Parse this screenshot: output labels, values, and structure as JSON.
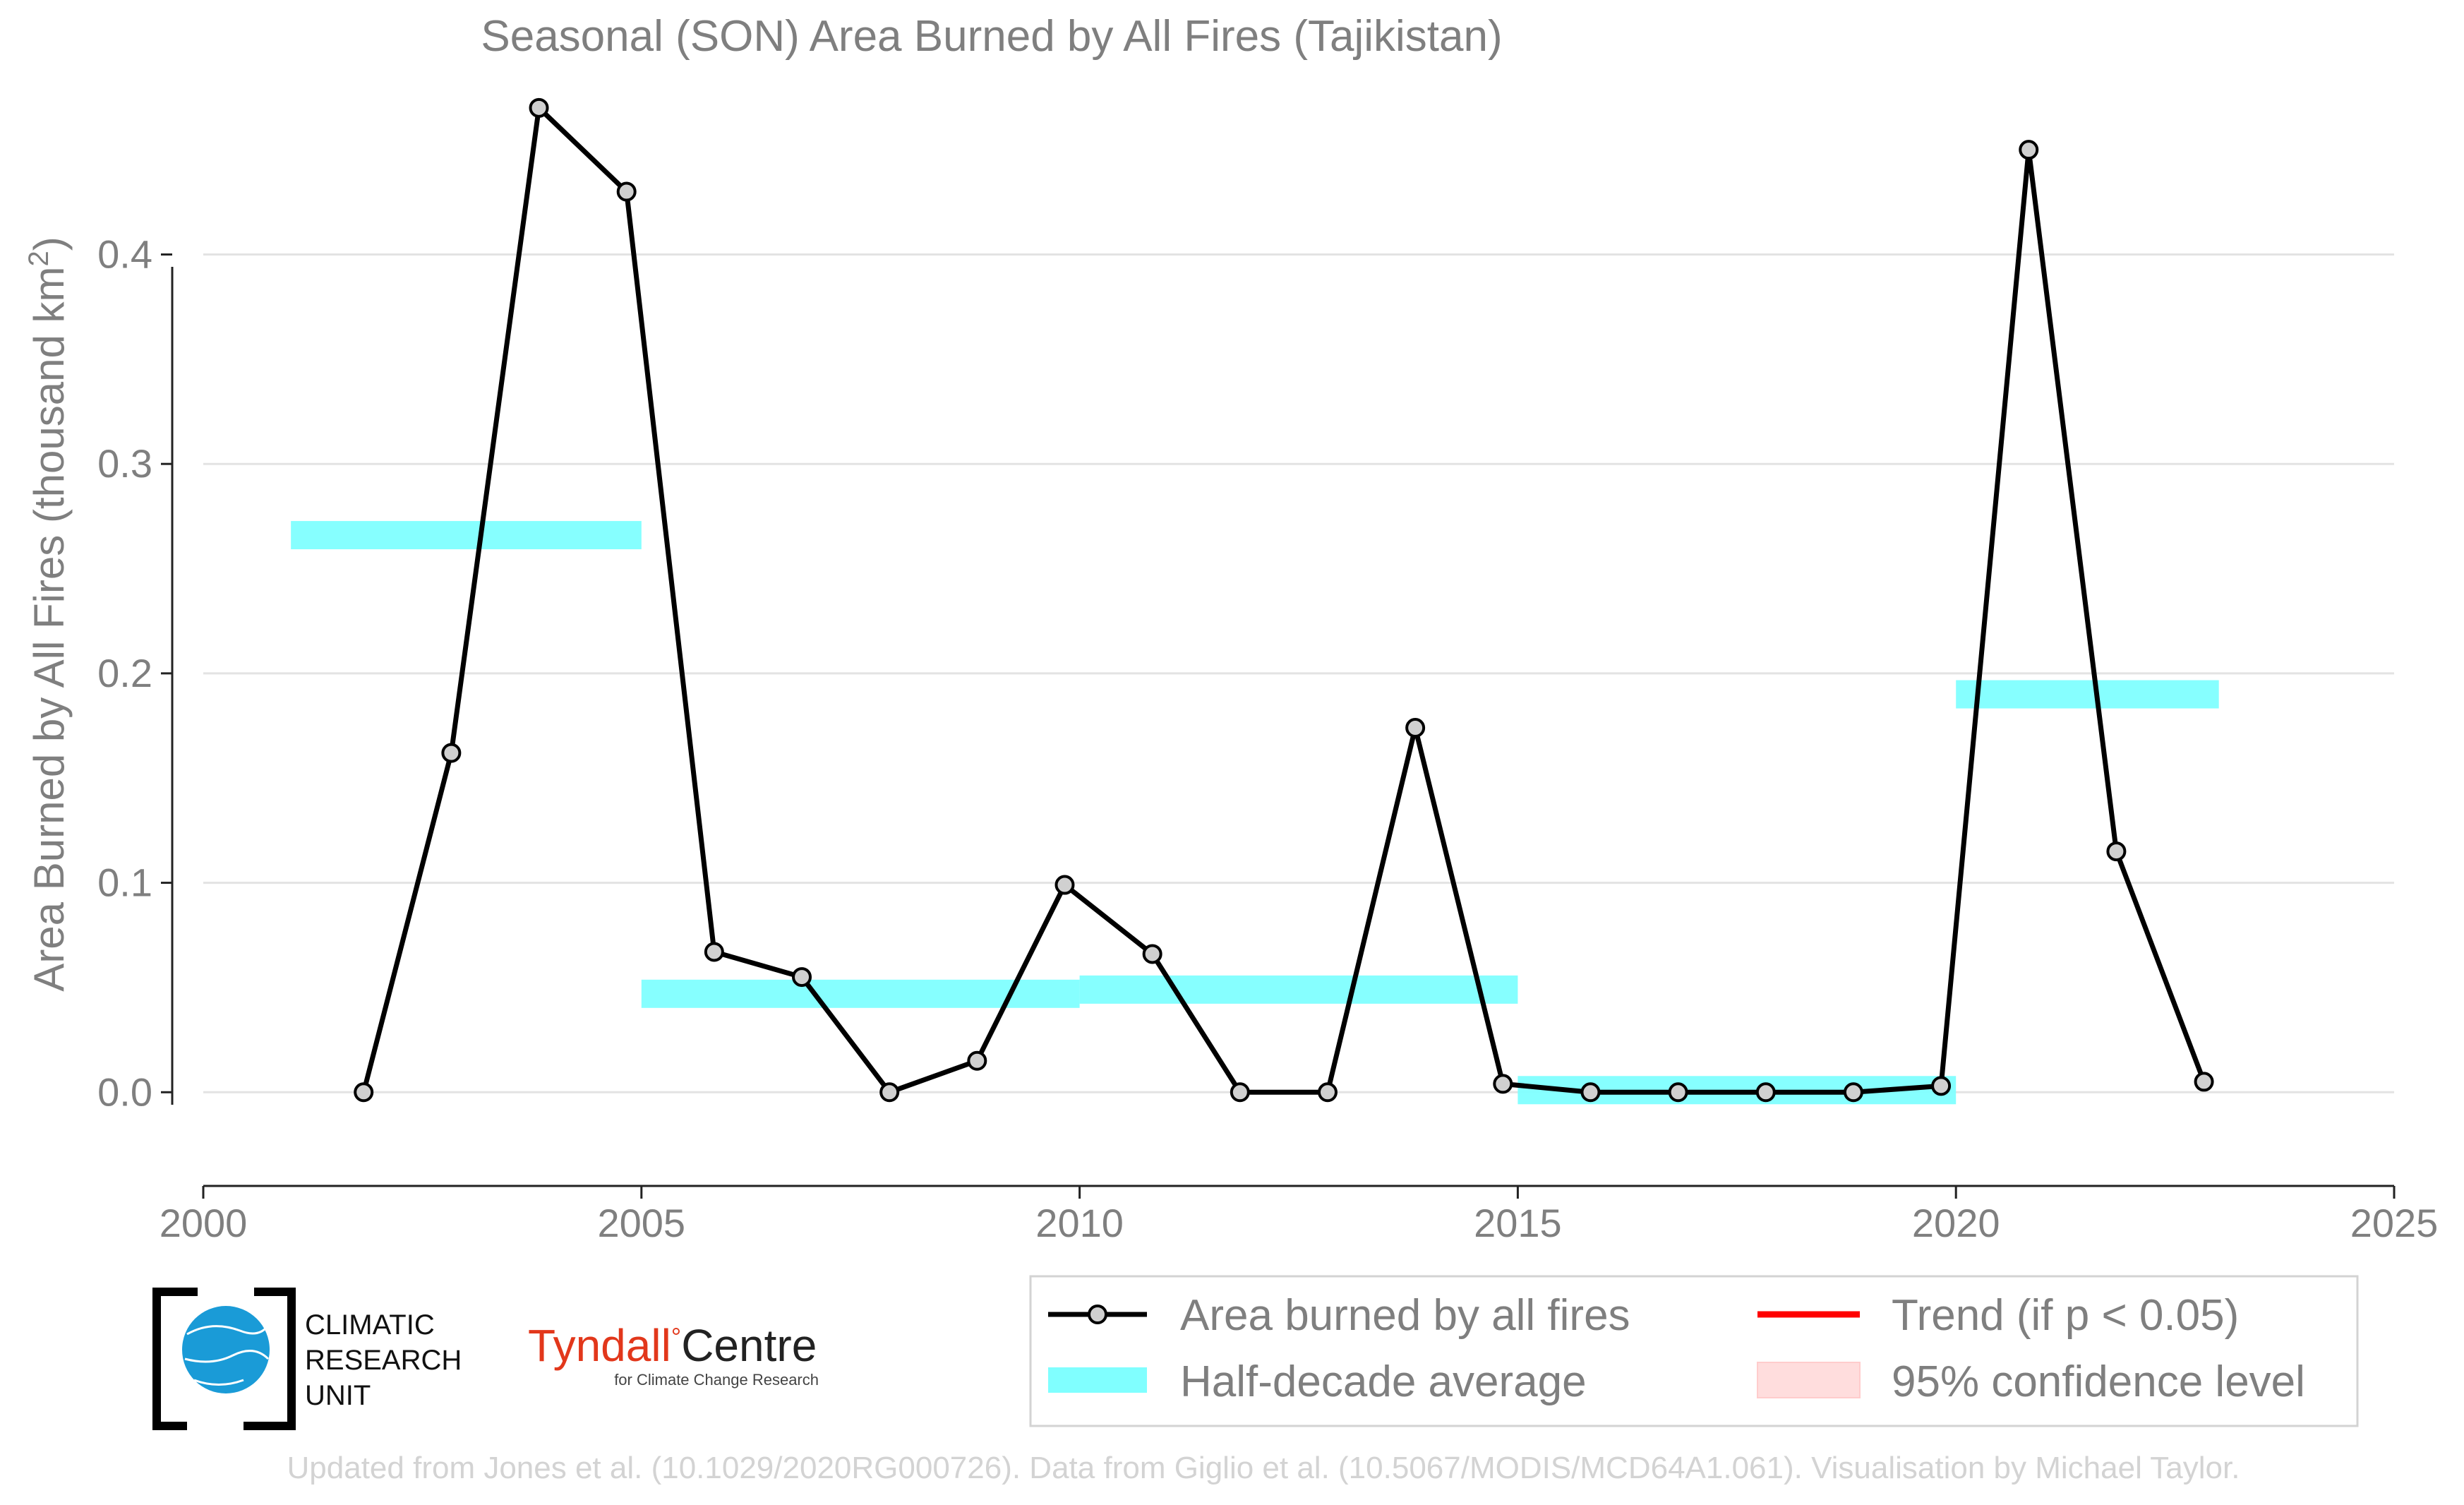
{
  "chart_data": {
    "type": "line",
    "title": "Seasonal (SON) Area Burned by All Fires (Tajikistan)",
    "ylabel": "Area Burned by All Fires (thousand km",
    "ylabel_sup": "2",
    "ylabel_close": ")",
    "xlim": [
      2000,
      2025
    ],
    "ylim": [
      -0.038,
      0.475
    ],
    "x_ticks": [
      2000,
      2005,
      2010,
      2015,
      2020,
      2025
    ],
    "x_tick_labels": [
      "2000",
      "2005",
      "2010",
      "2015",
      "2020",
      "2025"
    ],
    "y_ticks": [
      0.0,
      0.1,
      0.2,
      0.3,
      0.4
    ],
    "y_tick_labels": [
      "0.0",
      "0.1",
      "0.2",
      "0.3",
      "0.4"
    ],
    "grid": "horizontal",
    "series": [
      {
        "name": "Area burned by all fires",
        "color": "#000000",
        "marker_fill": "#d0d0d0",
        "x": [
          2001.83,
          2002.83,
          2003.83,
          2004.83,
          2005.83,
          2006.83,
          2007.83,
          2008.83,
          2009.83,
          2010.83,
          2011.83,
          2012.83,
          2013.83,
          2014.83,
          2015.83,
          2016.83,
          2017.83,
          2018.83,
          2019.83,
          2020.83,
          2021.83,
          2022.83
        ],
        "values": [
          0.0,
          0.162,
          0.47,
          0.43,
          0.067,
          0.055,
          0.0,
          0.015,
          0.099,
          0.066,
          0.0,
          0.0,
          0.174,
          0.004,
          0.0,
          0.0,
          0.0,
          0.0,
          0.003,
          0.45,
          0.115,
          0.005
        ]
      }
    ],
    "half_decade_average": {
      "name": "Half-decade average",
      "color": "#80ffff",
      "segments": [
        {
          "x_start": 2001,
          "x_end": 2005,
          "value": 0.266
        },
        {
          "x_start": 2005,
          "x_end": 2010,
          "value": 0.047
        },
        {
          "x_start": 2010,
          "x_end": 2015,
          "value": 0.049
        },
        {
          "x_start": 2015,
          "x_end": 2020,
          "value": 0.001
        },
        {
          "x_start": 2020,
          "x_end": 2023,
          "value": 0.19
        }
      ]
    },
    "legend": {
      "position": "bottom-right",
      "items": [
        {
          "label": "Area burned by all fires",
          "color": "#000000"
        },
        {
          "label": "Trend (if p < 0.05)",
          "color": "#ff0000"
        },
        {
          "label": "Half-decade average",
          "color": "#80ffff"
        },
        {
          "label": "95% confidence level",
          "color": "#ffdddd"
        }
      ]
    }
  },
  "logos": {
    "cru_lines": [
      "CLIMATIC",
      "RESEARCH",
      "UNIT"
    ],
    "tyndall_name": "Tyndall",
    "tyndall_degree": "°",
    "tyndall_centre": "Centre",
    "tyndall_sub": "for Climate Change Research",
    "cru_globe_color": "#1a9bd7"
  },
  "footer": "Updated from Jones et al. (10.1029/2020RG000726). Data from Giglio et al. (10.5067/MODIS/MCD64A1.061). Visualisation by Michael Taylor."
}
